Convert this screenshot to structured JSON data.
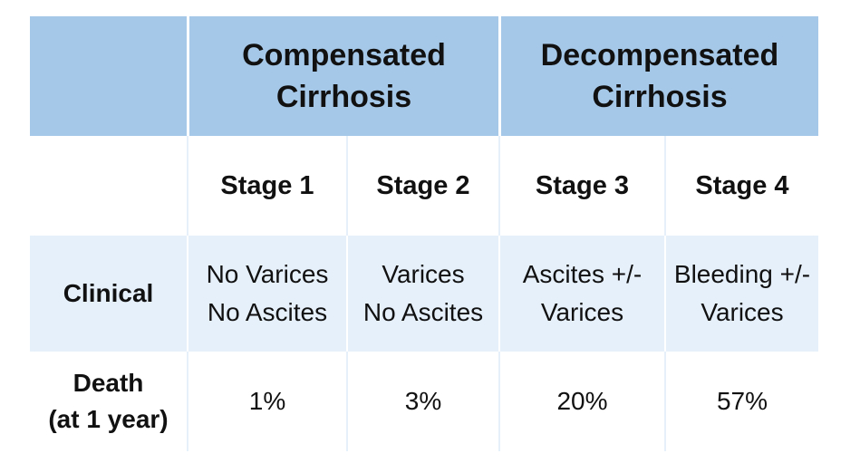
{
  "header": {
    "compensated": "Compensated\nCirrhosis",
    "decompensated": "Decompensated\nCirrhosis"
  },
  "stages": [
    "Stage 1",
    "Stage 2",
    "Stage 3",
    "Stage 4"
  ],
  "rows": {
    "clinical": {
      "label": "Clinical",
      "values": [
        "No Varices\nNo Ascites",
        "Varices\nNo Ascites",
        "Ascites +/-\nVarices",
        "Bleeding +/-\nVarices"
      ]
    },
    "death": {
      "label": "Death\n(at 1 year)",
      "values": [
        "1%",
        "3%",
        "20%",
        "57%"
      ]
    }
  },
  "colors": {
    "header_bg": "#a6c8e8",
    "row_light_bg": "#e6f0fb",
    "text": "#111111"
  }
}
